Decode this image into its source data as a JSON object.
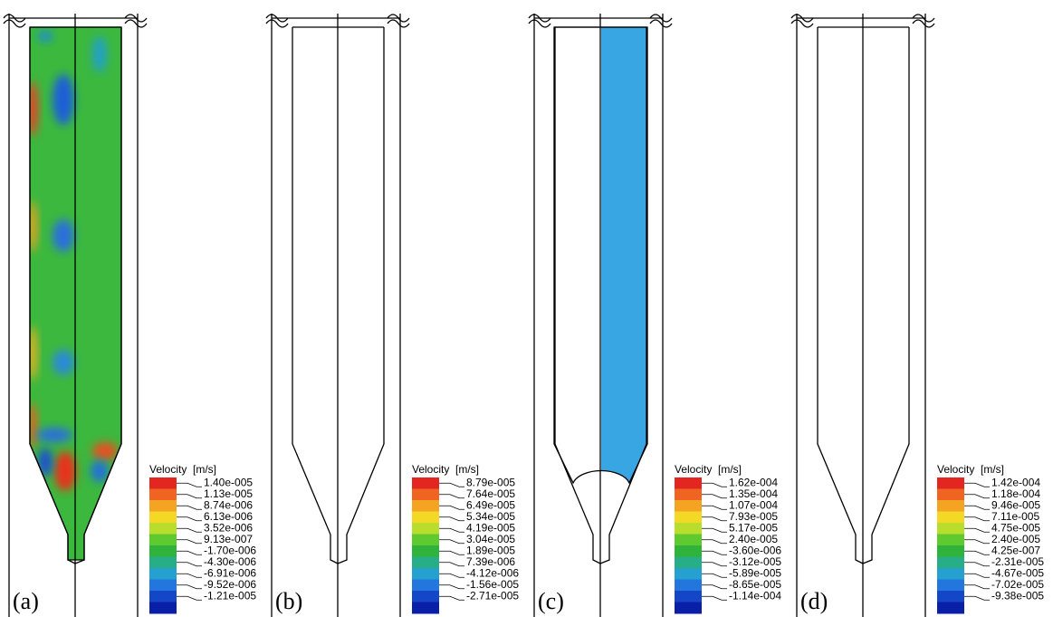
{
  "panels": [
    {
      "label": "(a)",
      "legend": {
        "title": "Velocity",
        "unit": "[m/s]",
        "levels": [
          "1.40e-005",
          "1.13e-005",
          "8.74e-006",
          "6.13e-006",
          "3.52e-006",
          "9.13e-007",
          "-1.70e-006",
          "-4.30e-006",
          "-6.91e-006",
          "-9.52e-006",
          "-1.21e-005"
        ]
      }
    },
    {
      "label": "(b)",
      "legend": {
        "title": "Velocity",
        "unit": "[m/s]",
        "levels": [
          "8.79e-005",
          "7.64e-005",
          "6.49e-005",
          "5.34e-005",
          "4.19e-005",
          "3.04e-005",
          "1.89e-005",
          "7.39e-006",
          "-4.12e-006",
          "-1.56e-005",
          "-2.71e-005"
        ]
      }
    },
    {
      "label": "(c)",
      "legend": {
        "title": "Velocity",
        "unit": "[m/s]",
        "levels": [
          "1.62e-004",
          "1.35e-004",
          "1.07e-004",
          "7.93e-005",
          "5.17e-005",
          "2.40e-005",
          "-3.60e-006",
          "-3.12e-005",
          "-5.89e-005",
          "-8.65e-005",
          "-1.14e-004"
        ]
      }
    },
    {
      "label": "(d)",
      "legend": {
        "title": "Velocity",
        "unit": "[m/s]",
        "levels": [
          "1.42e-004",
          "1.18e-004",
          "9.46e-005",
          "7.11e-005",
          "4.75e-005",
          "2.40e-005",
          "4.25e-007",
          "-2.31e-005",
          "-4.67e-005",
          "-7.02e-005",
          "-9.38e-005"
        ]
      }
    }
  ]
}
